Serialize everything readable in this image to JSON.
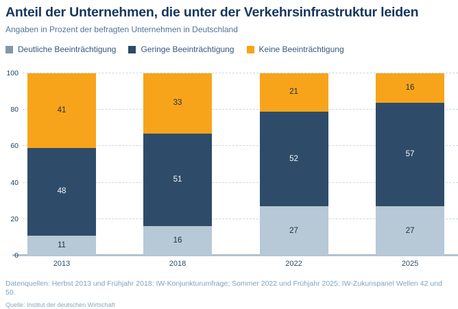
{
  "header": {
    "title": "Anteil der Unternehmen, die unter der Verkehrsinfrastruktur leiden",
    "subtitle": "Angaben in Prozent der befragten Unternehmen in Deutschland"
  },
  "legend": [
    {
      "label": "Deutliche Beeinträchtigung",
      "marker_color": "#8297ab"
    },
    {
      "label": "Geringe Beeinträchtigung",
      "marker_color": "#2d4a66"
    },
    {
      "label": "Keine Beeinträchtigung",
      "marker_color": "#f7a418"
    }
  ],
  "chart_data": {
    "type": "bar",
    "stacked": true,
    "title": "Anteil der Unternehmen, die unter der Verkehrsinfrastruktur leiden",
    "subtitle": "Angaben in Prozent der befragten Unternehmen in Deutschland",
    "categories": [
      "2013",
      "2018",
      "2022",
      "2025"
    ],
    "series": [
      {
        "name": "Deutliche Beeinträchtigung",
        "color": "#b7c8d6",
        "label_color": "#1f2d3a",
        "values": [
          11,
          16,
          27,
          27
        ]
      },
      {
        "name": "Geringe Beeinträchtigung",
        "color": "#2e4c69",
        "label_color": "#f4f7fa",
        "values": [
          48,
          51,
          52,
          57
        ]
      },
      {
        "name": "Keine Beeinträchtigung",
        "color": "#f7a41b",
        "label_color": "#1f2d3a",
        "values": [
          41,
          33,
          21,
          16
        ]
      }
    ],
    "xlabel": "",
    "ylabel": "",
    "ylim": [
      0,
      100
    ],
    "yticks": [
      0,
      20,
      40,
      60,
      80,
      100
    ],
    "grid": "horizontal-dashed",
    "legend_position": "top-left"
  },
  "footer": {
    "datasources": "Datenquellen: Herbst 2013 und Frühjahr 2018: IW-Konjunkturumfrage; Sommer 2022 und Frühjahr 2025: IW-Zukunspanel Wellen 42 und 50.",
    "source": "Quelle: Institut der deutschen Wirtschaft"
  },
  "colors": {
    "title": "#17375c",
    "subtitle": "#4e7397",
    "gridline": "#c9d7e3",
    "axis_baseline": "#b2c2cd",
    "ytick_text": "#1d4263",
    "xtick_text": "#2e4d6a",
    "footer_text": "#7ea2bf"
  }
}
